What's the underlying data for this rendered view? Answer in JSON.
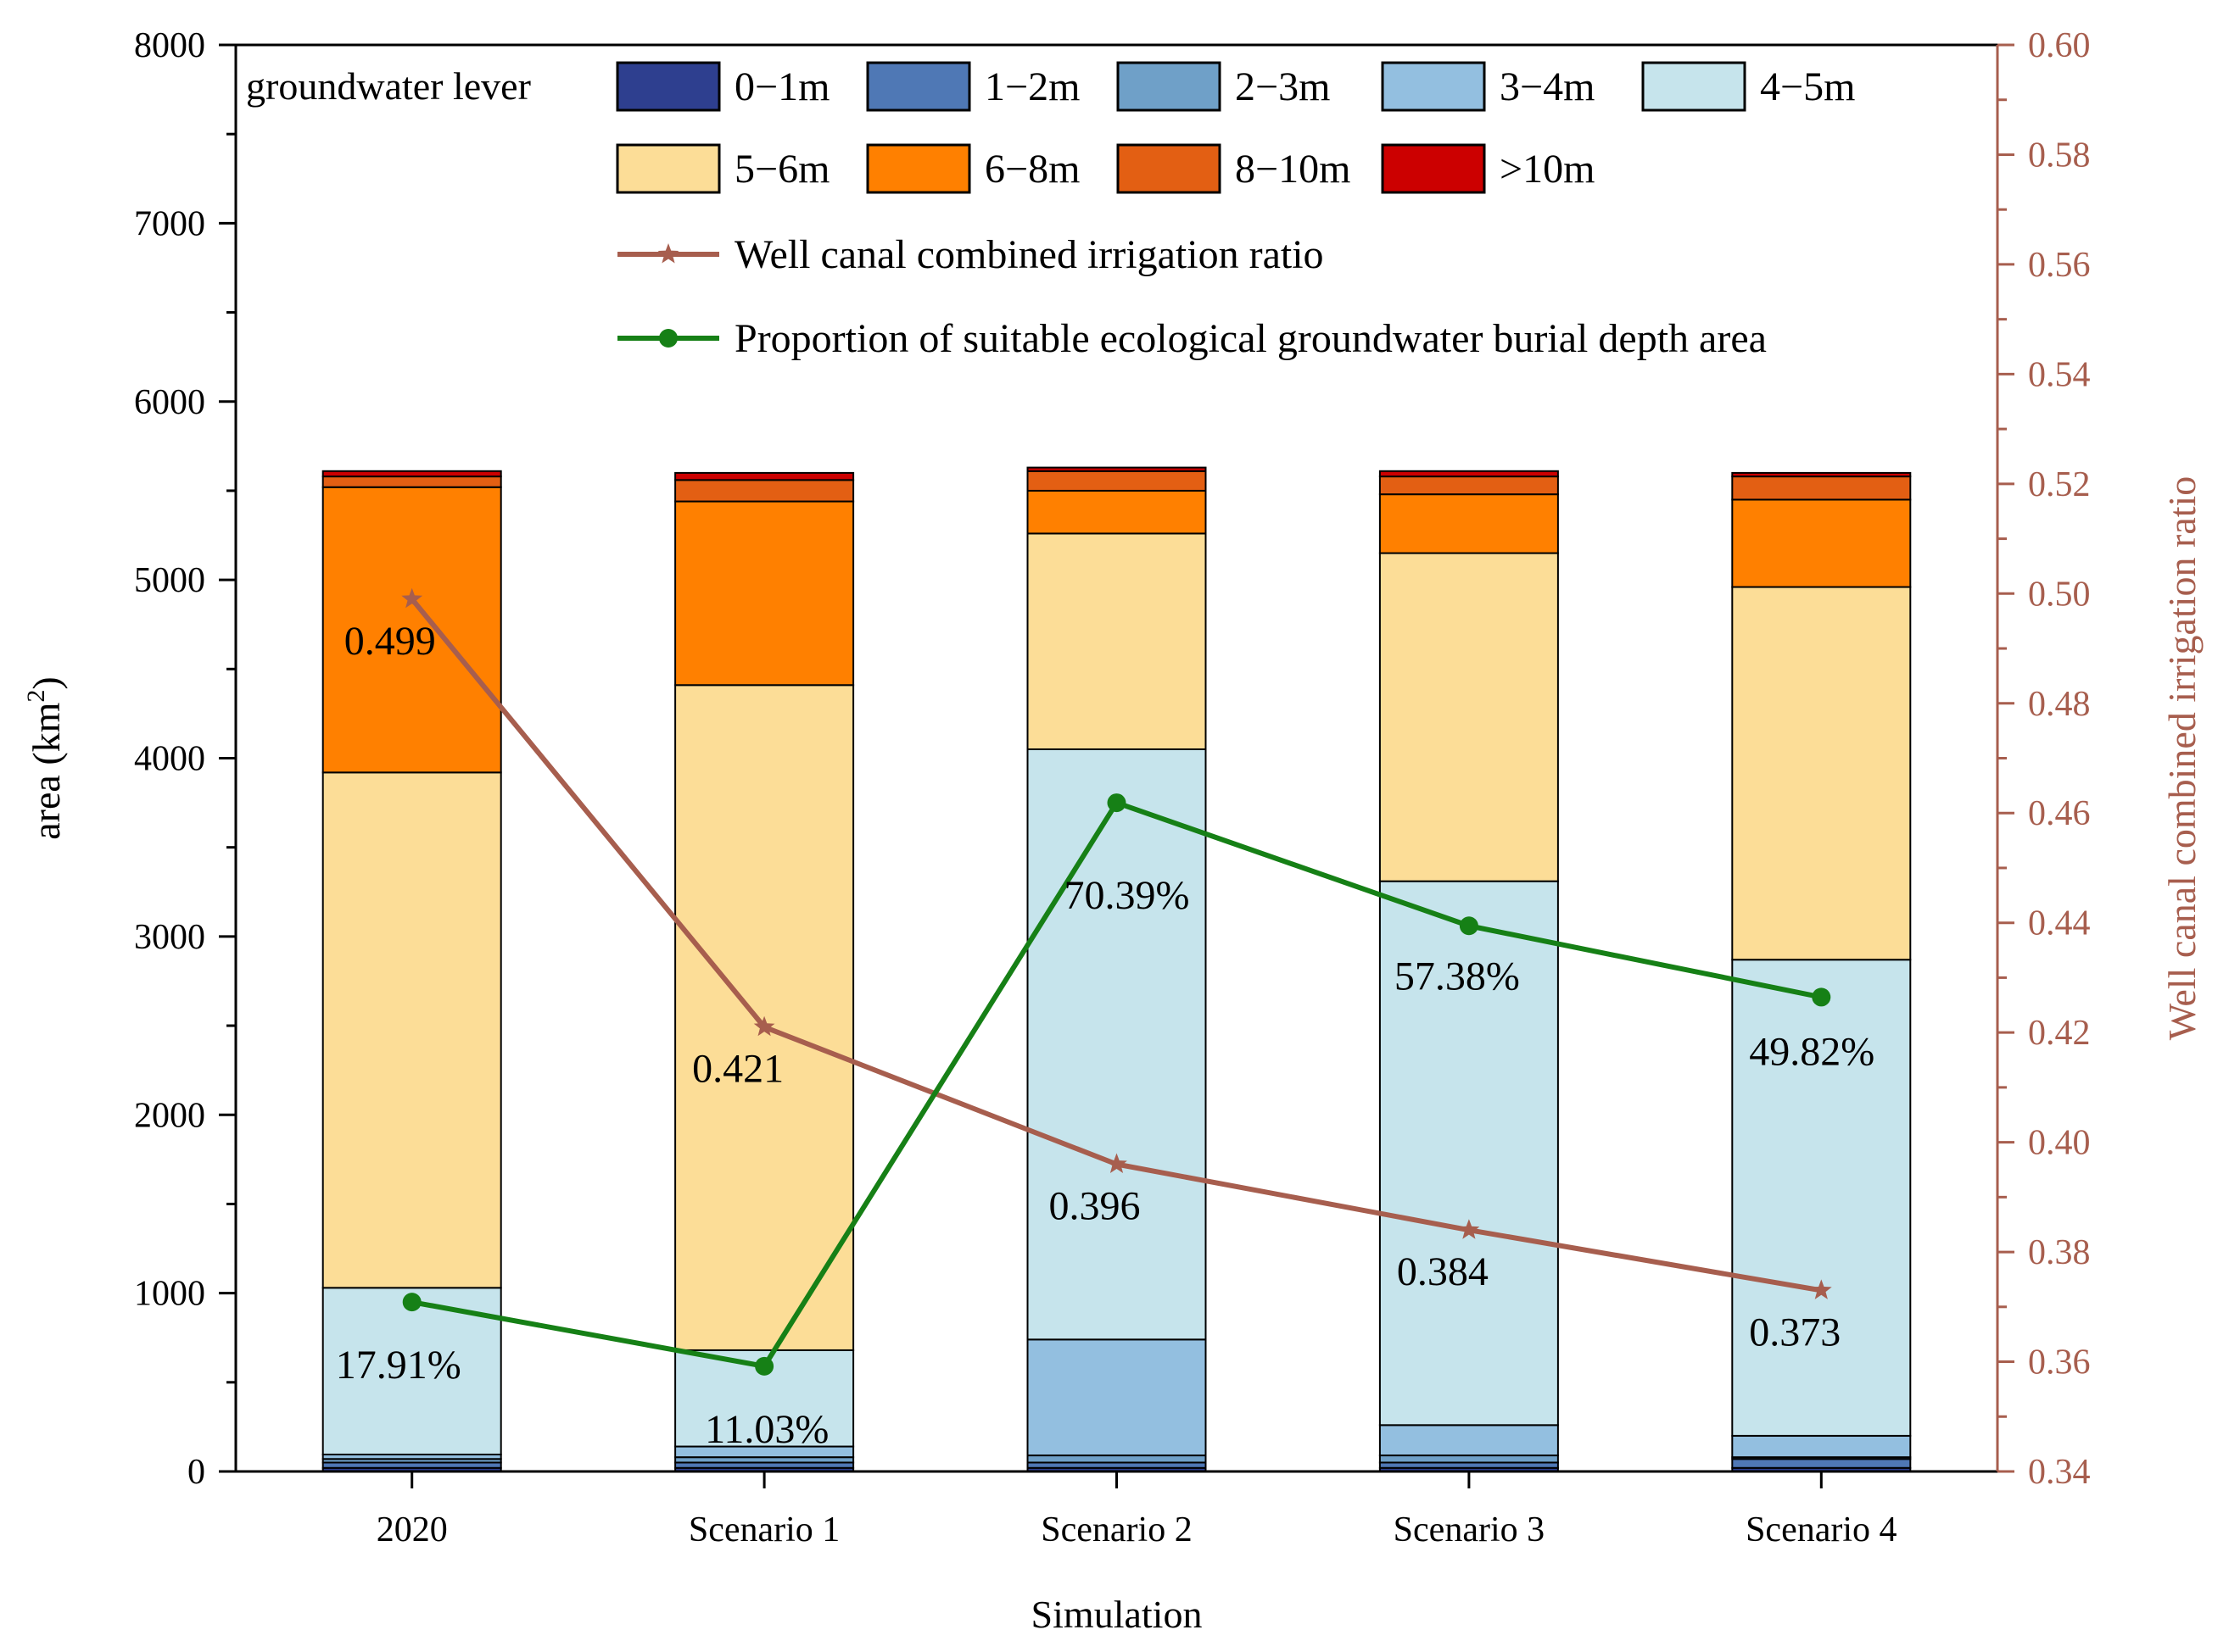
{
  "chart_data": {
    "type": "bar",
    "stacked": true,
    "categories": [
      "2020",
      "Scenario 1",
      "Scenario 2",
      "Scenario 3",
      "Scenario 4"
    ],
    "xlabel": "Simulation",
    "ylabel": "area (km",
    "ylabel_sup": "2",
    "ylabel_close": ")",
    "ylim": [
      0,
      8000
    ],
    "yticks": [
      0,
      1000,
      2000,
      3000,
      4000,
      5000,
      6000,
      7000,
      8000
    ],
    "y2label": "Well canal combined irrigation ratio",
    "y2lim": [
      0.34,
      0.6
    ],
    "y2ticks": [
      0.34,
      0.36,
      0.38,
      0.4,
      0.42,
      0.44,
      0.46,
      0.48,
      0.5,
      0.52,
      0.54,
      0.56,
      0.58,
      0.6
    ],
    "legend_title": "groundwater lever",
    "series": [
      {
        "name": "0−1m",
        "color": "#2E3F8F",
        "values": [
          20,
          20,
          20,
          20,
          20
        ]
      },
      {
        "name": "1−2m",
        "color": "#4F78B5",
        "values": [
          30,
          30,
          30,
          30,
          50
        ]
      },
      {
        "name": "2−3m",
        "color": "#6FA0C8",
        "values": [
          20,
          30,
          40,
          40,
          10
        ]
      },
      {
        "name": "3−4m",
        "color": "#93BFE0",
        "values": [
          25,
          60,
          650,
          170,
          120
        ]
      },
      {
        "name": "4−5m",
        "color": "#C6E4EC",
        "values": [
          935,
          540,
          3310,
          3050,
          2670
        ]
      },
      {
        "name": "5−6m",
        "color": "#FCDD97",
        "values": [
          2890,
          3730,
          1210,
          1840,
          2090
        ]
      },
      {
        "name": "6−8m",
        "color": "#FF8000",
        "values": [
          1600,
          1030,
          240,
          330,
          490
        ]
      },
      {
        "name": "8−10m",
        "color": "#E35F13",
        "values": [
          60,
          120,
          110,
          100,
          130
        ]
      },
      {
        ">10m_note": "",
        "name": ">10m",
        "color": "#CC0000",
        "values": [
          30,
          40,
          20,
          30,
          20
        ]
      }
    ],
    "lines": [
      {
        "name": "Well canal combined irrigation ratio",
        "axis": "right",
        "color": "#A75E4E",
        "marker": "star",
        "values": [
          0.499,
          0.421,
          0.396,
          0.384,
          0.373
        ],
        "labels": [
          "0.499",
          "0.421",
          "0.396",
          "0.384",
          "0.373"
        ]
      },
      {
        "name": "Proportion of suitable ecological groundwater burial depth area",
        "axis": "left",
        "color": "#168016",
        "marker": "circle",
        "values": [
          950,
          590,
          3750,
          3060,
          2660
        ],
        "labels": [
          "17.91%",
          "11.03%",
          "70.39%",
          "57.38%",
          "49.82%"
        ]
      }
    ]
  }
}
